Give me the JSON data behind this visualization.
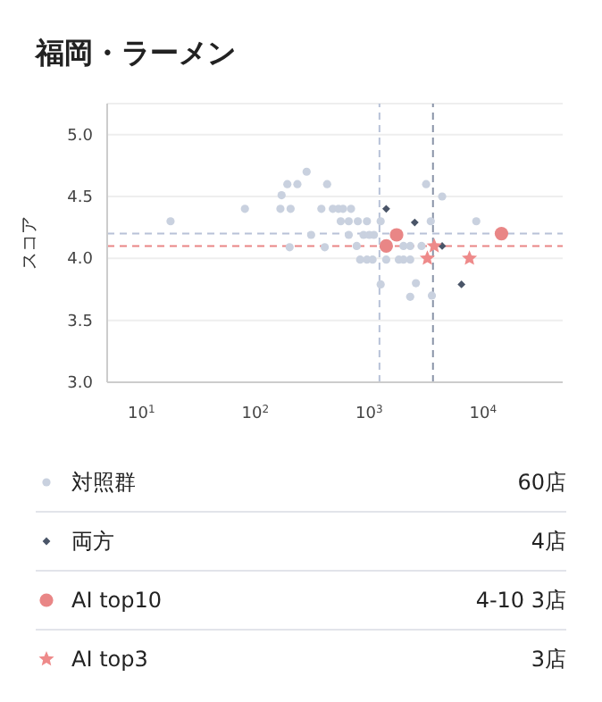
{
  "chart_data": {
    "type": "scatter",
    "title": "福岡・ラーメン",
    "ylabel": "スコア",
    "log": "x",
    "xlim": [
      5,
      50000
    ],
    "xticks": [
      {
        "value": 10,
        "label": "10$^{1}$"
      },
      {
        "value": 100,
        "label": "10$^{2}$"
      },
      {
        "value": 1000,
        "label": "10$^{3}$"
      },
      {
        "value": 10000,
        "label": "10$^{4}$"
      }
    ],
    "ylim": [
      3,
      5.25
    ],
    "yticks": [
      {
        "value": 3,
        "label": "3.0"
      },
      {
        "value": 3.5,
        "label": "3.5"
      },
      {
        "value": 4,
        "label": "4.0"
      },
      {
        "value": 4.5,
        "label": "4.5"
      },
      {
        "value": 5,
        "label": "5.0"
      }
    ],
    "grid": "y",
    "legend": "bottom",
    "series": [
      {
        "name": "対照群",
        "color": "#c9d1df",
        "marker": "circle",
        "x": [
          18,
          81,
          166,
          204,
          170,
          191,
          234,
          282,
          427,
          380,
          479,
          537,
          589,
          692,
          562,
          661,
          794,
          955,
          1260,
          309,
          661,
          891,
          1000,
          1100,
          200,
          407,
          776,
          832,
          955,
          1070,
          1410,
          1820,
          2000,
          2290,
          2000,
          2290,
          2880,
          3160,
          4370,
          3470,
          8710,
          1260,
          2570,
          2290,
          3550
        ],
        "values": [
          4.3,
          4.4,
          4.4,
          4.4,
          4.51,
          4.6,
          4.6,
          4.7,
          4.6,
          4.4,
          4.4,
          4.4,
          4.4,
          4.4,
          4.3,
          4.3,
          4.3,
          4.3,
          4.3,
          4.19,
          4.19,
          4.19,
          4.19,
          4.19,
          4.09,
          4.09,
          4.1,
          3.99,
          3.99,
          3.99,
          3.99,
          3.99,
          3.99,
          3.99,
          4.1,
          4.1,
          4.1,
          4.6,
          4.5,
          4.3,
          4.3,
          3.79,
          3.8,
          3.69,
          3.7
        ]
      },
      {
        "name": "両方",
        "color": "#4a5568",
        "marker": "diamond",
        "x": [
          1410,
          2510,
          4370,
          6460
        ],
        "values": [
          4.4,
          4.29,
          4.1,
          3.79
        ]
      },
      {
        "name": "AI top10",
        "color": "#e98686",
        "marker": "circle",
        "x": [
          1740,
          1410,
          14500
        ],
        "values": [
          4.19,
          4.1,
          4.2
        ]
      },
      {
        "name": "AI top3",
        "color": "#ee8a8a",
        "marker": "star",
        "x": [
          3720,
          3240,
          7590
        ],
        "values": [
          4.1,
          4.0,
          4.0
        ]
      }
    ],
    "ref_lines": [
      {
        "axis": "x",
        "value": 1230,
        "color": "#b8c2d8",
        "line_style": "dashed"
      },
      {
        "axis": "x",
        "value": 3630,
        "color": "#8a94a8",
        "line_style": "dashed"
      },
      {
        "axis": "y",
        "value": 4.2,
        "color": "#b8c2d8",
        "line_style": "dashed"
      },
      {
        "axis": "y",
        "value": 4.1,
        "color": "#e98686",
        "line_style": "dashed"
      }
    ],
    "annotations": [
      "60店",
      "4店",
      "4-10 3店",
      "3店"
    ]
  }
}
